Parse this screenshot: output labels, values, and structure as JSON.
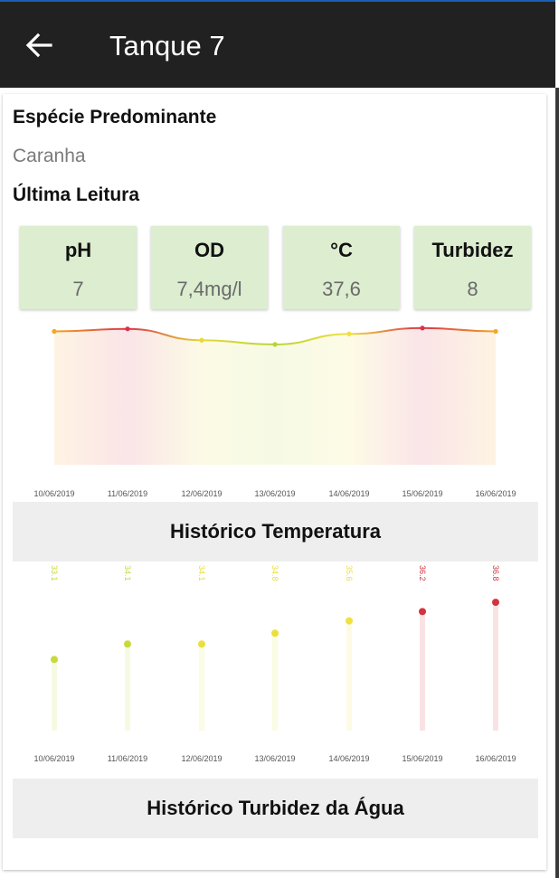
{
  "appbar": {
    "title": "Tanque 7",
    "back_icon": "arrow-left-icon"
  },
  "species": {
    "label": "Espécie Predominante",
    "value": "Caranha"
  },
  "last_reading": {
    "label": "Última Leitura",
    "tiles": [
      {
        "label": "pH",
        "value": "7",
        "color": "#dcedd0"
      },
      {
        "label": "OD",
        "value": "7,4mg/l",
        "color": "#dcedd0"
      },
      {
        "label": "°C",
        "value": "37,6",
        "color": "#dcedd0"
      },
      {
        "label": "Turbidez",
        "value": "8",
        "color": "#dcedd0"
      }
    ]
  },
  "temperature_history": {
    "title": "Histórico Temperatura",
    "chart_data": {
      "type": "area",
      "x": [
        "10/06/2019",
        "11/06/2019",
        "12/06/2019",
        "13/06/2019",
        "14/06/2019",
        "15/06/2019",
        "16/06/2019"
      ],
      "series": [
        {
          "values": [
            36.2,
            36.8,
            34.1,
            33.1,
            35.6,
            37.0,
            36.2
          ],
          "colors": [
            "#f5a623",
            "#d9334a",
            "#e7d93a",
            "#b8d430",
            "#f0e040",
            "#d9334a",
            "#f5a623"
          ]
        }
      ],
      "ylim": [
        32,
        37.6
      ],
      "grid": false
    }
  },
  "turbidity_history": {
    "title": "Histórico Turbidez da Água",
    "chart_data": {
      "type": "bar",
      "categories": [
        "10/06/2019",
        "11/06/2019",
        "12/06/2019",
        "13/06/2019",
        "14/06/2019",
        "15/06/2019",
        "16/06/2019"
      ],
      "values": [
        33.1,
        34.1,
        34.1,
        34.8,
        35.6,
        36.2,
        36.8
      ],
      "labels": [
        "33.1",
        "34.1",
        "34.1",
        "34.8",
        "35.6",
        "36.2",
        "36.8"
      ],
      "colors": [
        "#c9d93a",
        "#c9d93a",
        "#e9e03a",
        "#e9e03a",
        "#f0e040",
        "#d4323f",
        "#d4323f"
      ],
      "grid": false
    }
  }
}
